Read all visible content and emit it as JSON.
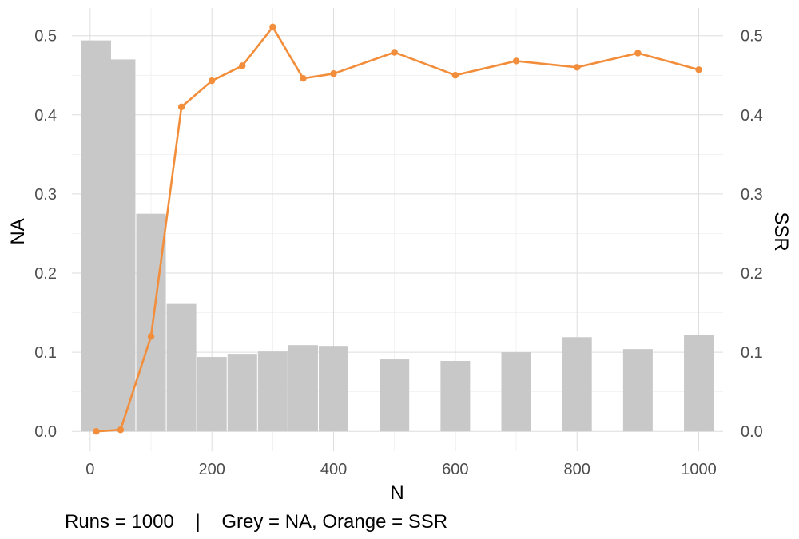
{
  "chart_data": {
    "type": "bar+line",
    "x": [
      10,
      50,
      100,
      150,
      200,
      250,
      300,
      350,
      400,
      500,
      600,
      700,
      800,
      900,
      1000
    ],
    "series": [
      {
        "type": "bar",
        "axis": "left",
        "values": [
          0.494,
          0.47,
          0.275,
          0.161,
          0.094,
          0.098,
          0.101,
          0.109,
          0.108,
          0.091,
          0.089,
          0.1,
          0.119,
          0.104,
          0.122
        ]
      },
      {
        "type": "line",
        "axis": "right",
        "values": [
          0.0,
          0.002,
          0.12,
          0.41,
          0.443,
          0.462,
          0.511,
          0.446,
          0.452,
          0.479,
          0.45,
          0.468,
          0.46,
          0.478,
          0.457
        ]
      }
    ],
    "xlabel": "N",
    "ylabel_left": "NA",
    "ylabel_right": "SSR",
    "xlim": [
      -30,
      1040
    ],
    "ylim": [
      -0.025,
      0.535
    ],
    "xticks": [
      0,
      200,
      400,
      600,
      800,
      1000
    ],
    "yticks": [
      0.0,
      0.1,
      0.2,
      0.3,
      0.4,
      0.5
    ],
    "xtick_labels": [
      "0",
      "200",
      "400",
      "600",
      "800",
      "1000"
    ],
    "ytick_labels": [
      "0.0",
      "0.1",
      "0.2",
      "0.3",
      "0.4",
      "0.5"
    ],
    "grid": true,
    "caption": "Runs = 1000    |    Grey = NA, Orange = SSR",
    "colors": {
      "bar": "#c8c8c8",
      "line": "#f28e3b"
    }
  }
}
